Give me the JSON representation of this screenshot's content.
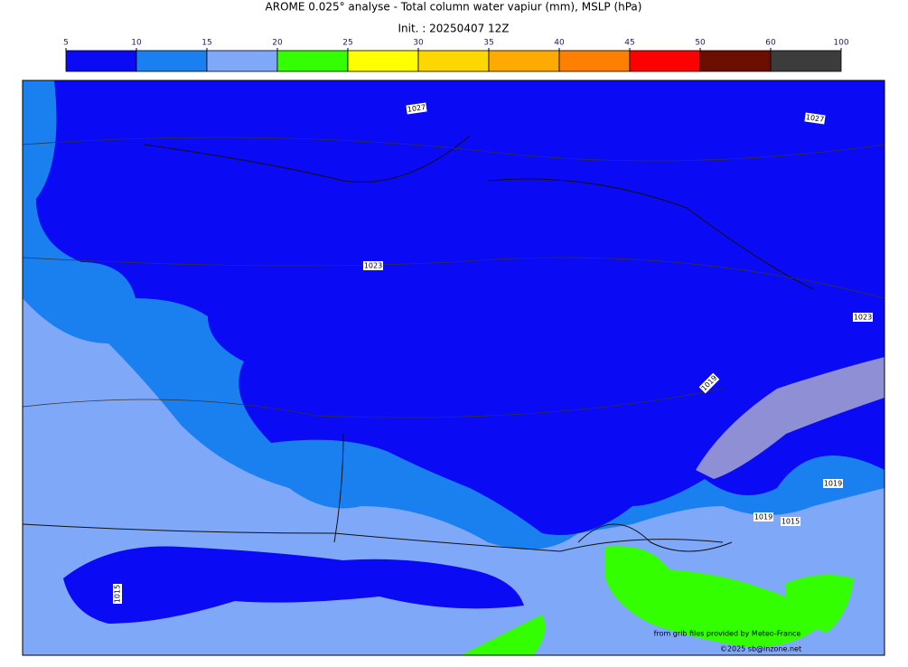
{
  "title": "AROME 0.025° analyse - Total column water vapiur (mm), MSLP (hPa)",
  "init": "Init. : 20250407 12Z",
  "colorbar": {
    "ticks": [
      5,
      10,
      15,
      20,
      25,
      30,
      35,
      40,
      45,
      50,
      60,
      100
    ],
    "colors": [
      "#0a0af5",
      "#1a80f0",
      "#80a8f8",
      "#33ff00",
      "#ffff00",
      "#ffd700",
      "#ffaa00",
      "#ff8000",
      "#ff0000",
      "#6b0e00",
      "#3c3c3c"
    ]
  },
  "isobar_labels": [
    "1027",
    "1027",
    "1023",
    "1023",
    "1019",
    "1019",
    "1019",
    "1015",
    "1015"
  ],
  "credits": [
    "from grib files provided by Meteo-France",
    "©2025 sb@inzone.net"
  ]
}
